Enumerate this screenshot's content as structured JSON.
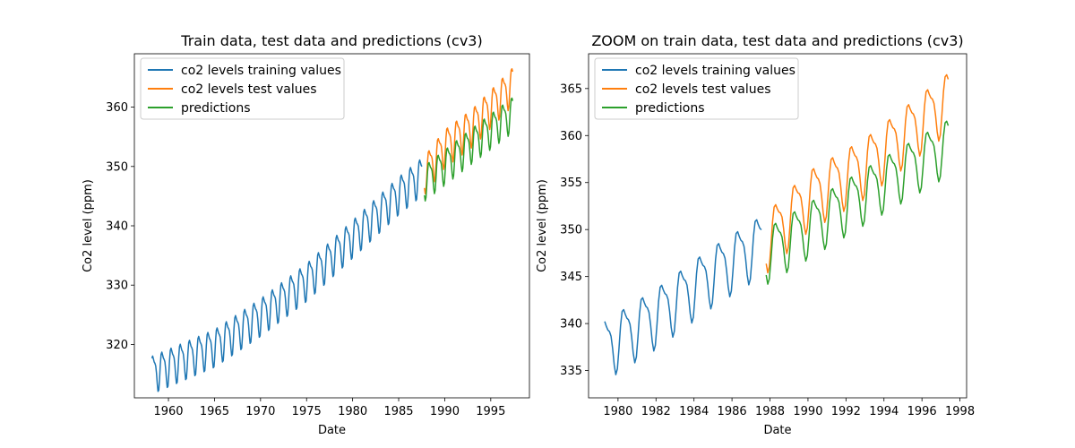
{
  "chart_data": [
    {
      "type": "line",
      "title": "Train data, test data and predictions (cv3)",
      "xlabel": "Date",
      "ylabel": "Co2 level (ppm)",
      "xlim": [
        1956.3,
        1999.2
      ],
      "ylim": [
        311.0,
        369.0
      ],
      "x_ticks": [
        1960,
        1965,
        1970,
        1975,
        1980,
        1985,
        1990,
        1995
      ],
      "y_ticks": [
        320,
        330,
        340,
        350,
        360
      ],
      "grid": false,
      "legend_position": "top-left",
      "series": [
        {
          "name": "co2 levels training values",
          "color": "#1f77b4",
          "x_range": [
            1958.2,
            1987.6
          ],
          "trend": [
            [
              1958.2,
              315.3
            ],
            [
              1965,
              319.8
            ],
            [
              1970,
              325.0
            ],
            [
              1975,
              330.9
            ],
            [
              1980,
              338.2
            ],
            [
              1985,
              345.5
            ],
            [
              1987.6,
              348.8
            ]
          ],
          "seasonal_amplitude": 2.9
        },
        {
          "name": "co2 levels test values",
          "color": "#ff7f0e",
          "x_range": [
            1987.8,
            1997.4
          ],
          "trend": [
            [
              1987.8,
              349.0
            ],
            [
              1990,
              353.5
            ],
            [
              1993,
              357.0
            ],
            [
              1997.4,
              364.0
            ]
          ],
          "seasonal_amplitude": 2.9
        },
        {
          "name": "predictions",
          "color": "#2ca02c",
          "x_range": [
            1987.8,
            1997.4
          ],
          "trend": [
            [
              1987.8,
              347.6
            ],
            [
              1990,
              350.3
            ],
            [
              1993,
              354.0
            ],
            [
              1997.4,
              359.2
            ]
          ],
          "seasonal_amplitude": 2.7
        }
      ]
    },
    {
      "type": "line",
      "title": "ZOOM on train data, test data and predictions (cv3)",
      "xlabel": "Date",
      "ylabel": "Co2 level (ppm)",
      "xlim": [
        1978.45,
        1998.35
      ],
      "ylim": [
        332.1,
        368.7
      ],
      "x_ticks": [
        1980,
        1982,
        1984,
        1986,
        1988,
        1990,
        1992,
        1994,
        1996,
        1998
      ],
      "y_ticks": [
        335,
        340,
        345,
        350,
        355,
        360,
        365
      ],
      "grid": false,
      "legend_position": "top-left",
      "series": [
        {
          "name": "co2 levels training values",
          "color": "#1f77b4",
          "x_range": [
            1979.3,
            1987.6
          ],
          "trend": [
            [
              1979.3,
              337.6
            ],
            [
              1982,
              341.0
            ],
            [
              1985,
              345.5
            ],
            [
              1987.6,
              348.8
            ]
          ],
          "seasonal_amplitude": 2.9
        },
        {
          "name": "co2 levels test values",
          "color": "#ff7f0e",
          "x_range": [
            1987.8,
            1997.4
          ],
          "trend": [
            [
              1987.8,
              349.0
            ],
            [
              1990,
              353.5
            ],
            [
              1993,
              357.0
            ],
            [
              1997.4,
              364.0
            ]
          ],
          "seasonal_amplitude": 2.9
        },
        {
          "name": "predictions",
          "color": "#2ca02c",
          "x_range": [
            1987.8,
            1997.4
          ],
          "trend": [
            [
              1987.8,
              347.6
            ],
            [
              1990,
              350.3
            ],
            [
              1993,
              354.0
            ],
            [
              1997.4,
              359.2
            ]
          ],
          "seasonal_amplitude": 2.7
        }
      ]
    }
  ]
}
